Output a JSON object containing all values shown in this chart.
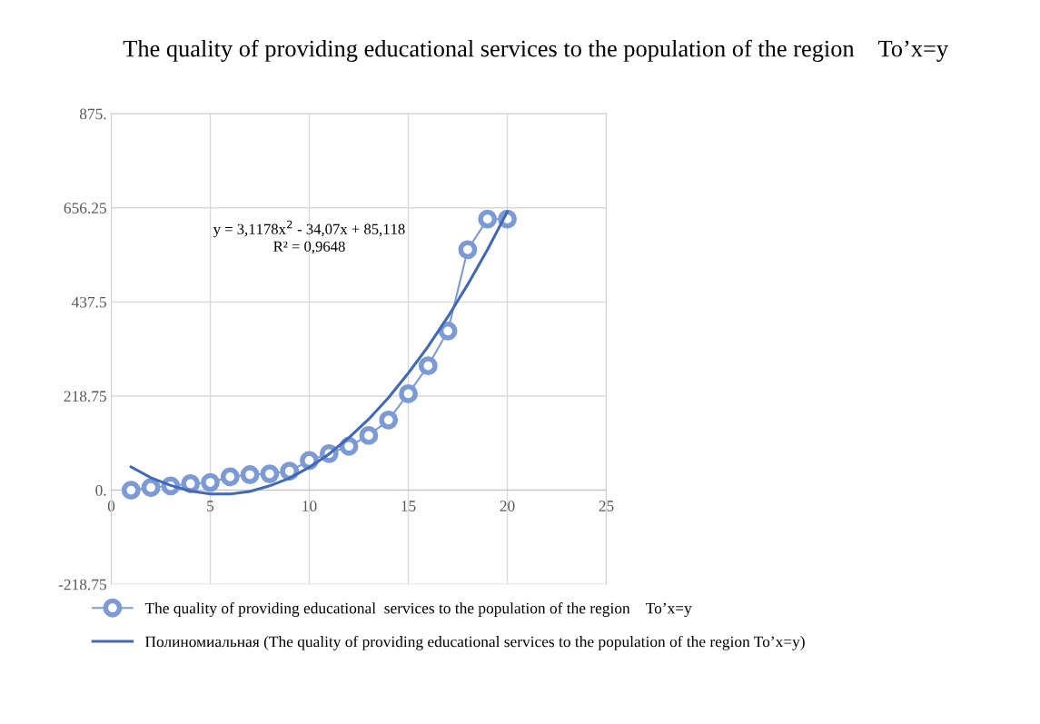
{
  "chart_data": {
    "type": "line",
    "title": "The quality of providing educational services to the population of the region    To’x=y",
    "x": [
      1,
      2,
      3,
      4,
      5,
      6,
      7,
      8,
      9,
      10,
      11,
      12,
      13,
      14,
      15,
      16,
      17,
      18,
      19,
      20
    ],
    "series": [
      {
        "name": "The quality of providing educational  services to the population of the region    To’x=y",
        "marker": "circle",
        "color": "#7b9ad6",
        "values": [
          0,
          6,
          10,
          15,
          18,
          31,
          36,
          38,
          44,
          69,
          85,
          102,
          127,
          163,
          224,
          289,
          370,
          559,
          630,
          630
        ]
      },
      {
        "name": "Полиномиальная (The quality of providing educational services to the population of the region To’x=y)",
        "type": "line",
        "marker": "none",
        "color": "#4169b8",
        "values": [
          54,
          29,
          11,
          -2,
          -9,
          -9,
          -3,
          10,
          28,
          53,
          84,
          122,
          165,
          215,
          272,
          334,
          403,
          478,
          559,
          647
        ]
      }
    ],
    "annotations": [
      "y = 3,1178x$^{2}$ - 34,07x + 85,118",
      "R² = 0,9648"
    ],
    "xlim": [
      0,
      25
    ],
    "xticks": [
      0,
      5,
      10,
      15,
      20,
      25
    ],
    "ylim": [
      -218.75,
      875
    ],
    "yticks": [
      {
        "value": -218.75,
        "label": "-218.75"
      },
      {
        "value": 0,
        "label": "0."
      },
      {
        "value": 218.75,
        "label": "218.75"
      },
      {
        "value": 437.5,
        "label": "437.5"
      },
      {
        "value": 656.25,
        "label": "656.25"
      },
      {
        "value": 875,
        "label": "875."
      }
    ],
    "grid": true,
    "legend": "bottom"
  }
}
